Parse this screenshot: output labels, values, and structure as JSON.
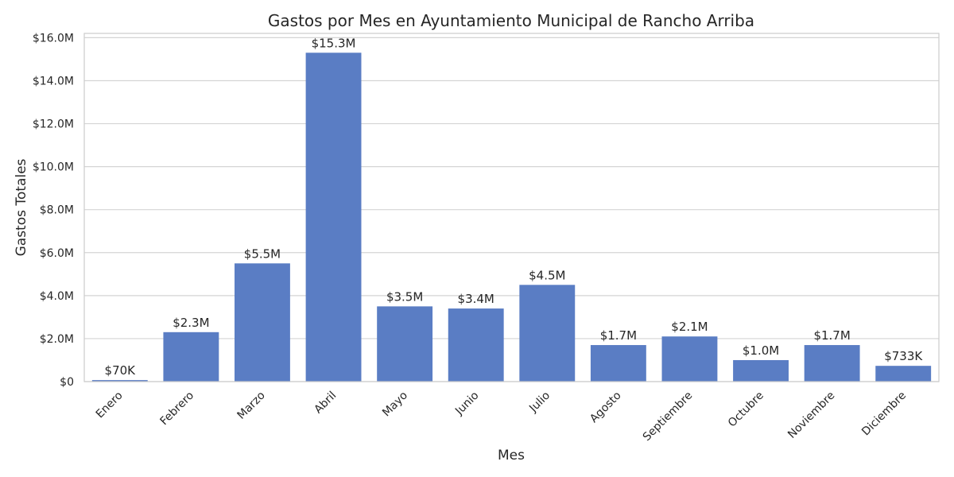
{
  "chart_data": {
    "type": "bar",
    "title": "Gastos por Mes en Ayuntamiento Municipal de Rancho Arriba",
    "xlabel": "Mes",
    "ylabel": "Gastos Totales",
    "categories": [
      "Enero",
      "Febrero",
      "Marzo",
      "Abril",
      "Mayo",
      "Junio",
      "Julio",
      "Agosto",
      "Septiembre",
      "Octubre",
      "Noviembre",
      "Diciembre"
    ],
    "values": [
      70000,
      2300000,
      5500000,
      15300000,
      3500000,
      3400000,
      4500000,
      1700000,
      2100000,
      1000000,
      1700000,
      733000
    ],
    "data_labels": [
      "$70K",
      "$2.3M",
      "$5.5M",
      "$15.3M",
      "$3.5M",
      "$3.4M",
      "$4.5M",
      "$1.7M",
      "$2.1M",
      "$1.0M",
      "$1.7M",
      "$733K"
    ],
    "ylim": [
      0,
      16200000
    ],
    "yticks": [
      0,
      2000000,
      4000000,
      6000000,
      8000000,
      10000000,
      12000000,
      14000000,
      16000000
    ],
    "ytick_labels": [
      "$0",
      "$2.0M",
      "$4.0M",
      "$6.0M",
      "$8.0M",
      "$10.0M",
      "$12.0M",
      "$14.0M",
      "$16.0M"
    ],
    "grid": true,
    "colors": {
      "bar": "#5a7dc4",
      "grid": "#d4d4d4",
      "axis_frame": "#cccccc",
      "text": "#262626"
    }
  }
}
